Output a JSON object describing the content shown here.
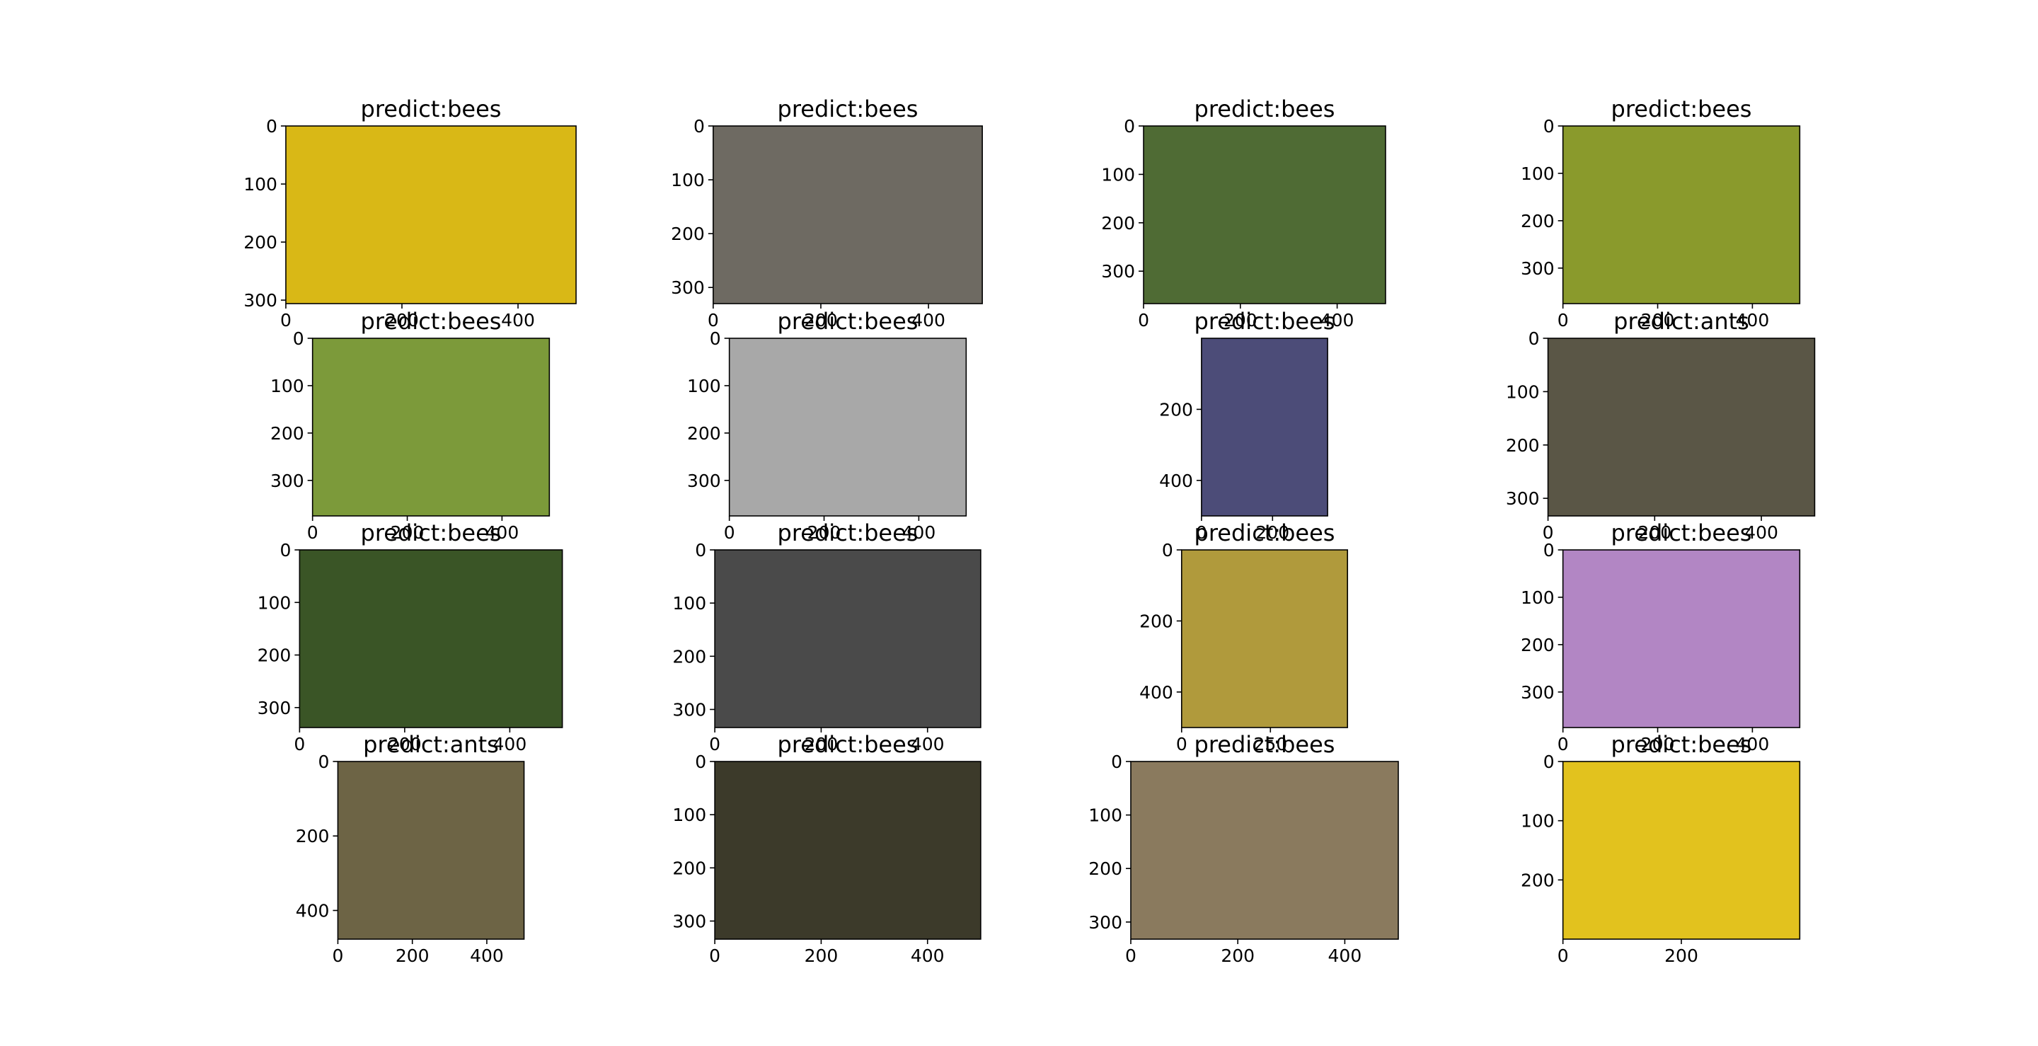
{
  "chart_data": [
    {
      "type": "image",
      "title": "predict:bees",
      "color": "#d9b816",
      "xlim": [
        0,
        500
      ],
      "ylim": [
        306,
        0
      ],
      "xticks": [
        0,
        200,
        400
      ],
      "yticks": [
        0,
        100,
        200,
        300
      ]
    },
    {
      "type": "image",
      "title": "predict:bees",
      "color": "#6e6a62",
      "xlim": [
        0,
        500
      ],
      "ylim": [
        330,
        0
      ],
      "xticks": [
        0,
        200,
        400
      ],
      "yticks": [
        0,
        100,
        200,
        300
      ]
    },
    {
      "type": "image",
      "title": "predict:bees",
      "color": "#4f6b34",
      "xlim": [
        0,
        500
      ],
      "ylim": [
        367,
        0
      ],
      "xticks": [
        0,
        200,
        400
      ],
      "yticks": [
        0,
        100,
        200,
        300
      ]
    },
    {
      "type": "image",
      "title": "predict:bees",
      "color": "#8a9a2c",
      "xlim": [
        0,
        500
      ],
      "ylim": [
        375,
        0
      ],
      "xticks": [
        0,
        200,
        400
      ],
      "yticks": [
        0,
        100,
        200,
        300
      ]
    },
    {
      "type": "image",
      "title": "predict:bees",
      "color": "#7c9a3a",
      "xlim": [
        0,
        500
      ],
      "ylim": [
        375,
        0
      ],
      "xticks": [
        0,
        200,
        400
      ],
      "yticks": [
        0,
        100,
        200,
        300
      ]
    },
    {
      "type": "image",
      "title": "predict:bees",
      "color": "#a8a8a8",
      "xlim": [
        0,
        500
      ],
      "ylim": [
        375,
        0
      ],
      "xticks": [
        0,
        200,
        400
      ],
      "yticks": [
        0,
        100,
        200,
        300
      ]
    },
    {
      "type": "image",
      "title": "predict:bees",
      "color": "#4c4c78",
      "xlim": [
        0,
        355
      ],
      "ylim": [
        500,
        0
      ],
      "xticks": [
        0,
        200
      ],
      "yticks": [
        200,
        400
      ]
    },
    {
      "type": "image",
      "title": "predict:ants",
      "color": "#5a5646",
      "xlim": [
        0,
        500
      ],
      "ylim": [
        333,
        0
      ],
      "xticks": [
        0,
        200,
        400
      ],
      "yticks": [
        0,
        100,
        200,
        300
      ]
    },
    {
      "type": "image",
      "title": "predict:bees",
      "color": "#3a5526",
      "xlim": [
        0,
        500
      ],
      "ylim": [
        338,
        0
      ],
      "xticks": [
        0,
        200,
        400
      ],
      "yticks": [
        0,
        100,
        200,
        300
      ]
    },
    {
      "type": "image",
      "title": "predict:bees",
      "color": "#4a4a4a",
      "xlim": [
        0,
        500
      ],
      "ylim": [
        334,
        0
      ],
      "xticks": [
        0,
        200,
        400
      ],
      "yticks": [
        0,
        100,
        200,
        300
      ]
    },
    {
      "type": "image",
      "title": "predict:bees",
      "color": "#b09a3c",
      "xlim": [
        0,
        467
      ],
      "ylim": [
        500,
        0
      ],
      "xticks": [
        0,
        250
      ],
      "yticks": [
        0,
        200,
        400
      ]
    },
    {
      "type": "image",
      "title": "predict:bees",
      "color": "#b286c4",
      "xlim": [
        0,
        500
      ],
      "ylim": [
        375,
        0
      ],
      "xticks": [
        0,
        200,
        400
      ],
      "yticks": [
        0,
        100,
        200,
        300
      ]
    },
    {
      "type": "image",
      "title": "predict:ants",
      "color": "#6d6445",
      "xlim": [
        0,
        500
      ],
      "ylim": [
        477,
        0
      ],
      "xticks": [
        0,
        200,
        400
      ],
      "yticks": [
        0,
        200,
        400
      ]
    },
    {
      "type": "image",
      "title": "predict:bees",
      "color": "#3c3a2a",
      "xlim": [
        0,
        500
      ],
      "ylim": [
        334,
        0
      ],
      "xticks": [
        0,
        200,
        400
      ],
      "yticks": [
        0,
        100,
        200,
        300
      ]
    },
    {
      "type": "image",
      "title": "predict:bees",
      "color": "#8a7a5e",
      "xlim": [
        0,
        500
      ],
      "ylim": [
        332,
        0
      ],
      "xticks": [
        0,
        200,
        400
      ],
      "yticks": [
        0,
        100,
        200,
        300
      ]
    },
    {
      "type": "image",
      "title": "predict:bees",
      "color": "#e2c21e",
      "xlim": [
        0,
        400
      ],
      "ylim": [
        300,
        0
      ],
      "xticks": [
        0,
        200
      ],
      "yticks": [
        0,
        100,
        200
      ]
    }
  ]
}
